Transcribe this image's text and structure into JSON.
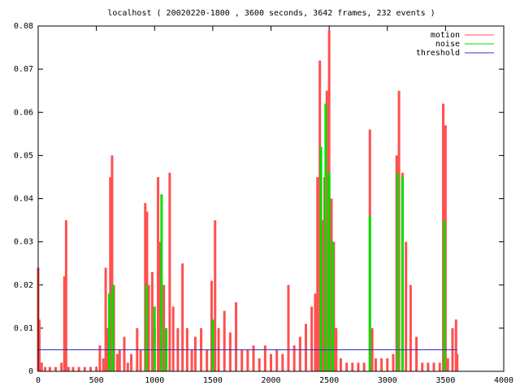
{
  "chart_data": {
    "type": "impulse",
    "title": "localhost ( 20020220-1800 , 3600 seconds, 3642 frames, 232 events )",
    "xlim": [
      0,
      4000
    ],
    "xticks": [
      0,
      500,
      1000,
      1500,
      2000,
      2500,
      3000,
      3500,
      4000
    ],
    "ylim": [
      0,
      0.08
    ],
    "yticks": [
      0,
      0.01,
      0.02,
      0.03,
      0.04,
      0.05,
      0.06,
      0.07,
      0.08
    ],
    "legend": "top-right",
    "series": [
      {
        "name": "motion",
        "color": "#ff5050",
        "style": "impulses",
        "x": [
          0,
          10,
          30,
          60,
          100,
          150,
          200,
          225,
          240,
          260,
          300,
          350,
          400,
          450,
          500,
          530,
          560,
          580,
          600,
          620,
          635,
          650,
          680,
          700,
          740,
          770,
          800,
          850,
          880,
          920,
          935,
          950,
          980,
          1000,
          1030,
          1050,
          1080,
          1100,
          1130,
          1160,
          1200,
          1240,
          1280,
          1320,
          1350,
          1400,
          1450,
          1490,
          1520,
          1550,
          1600,
          1650,
          1700,
          1750,
          1800,
          1850,
          1900,
          1950,
          2000,
          2050,
          2100,
          2150,
          2200,
          2250,
          2300,
          2350,
          2380,
          2400,
          2420,
          2440,
          2460,
          2480,
          2500,
          2520,
          2540,
          2560,
          2600,
          2650,
          2700,
          2750,
          2800,
          2850,
          2870,
          2900,
          2950,
          3000,
          3050,
          3080,
          3100,
          3130,
          3160,
          3200,
          3250,
          3300,
          3350,
          3400,
          3450,
          3480,
          3500,
          3520,
          3560,
          3590,
          3600
        ],
        "values": [
          0.024,
          0.012,
          0.002,
          0.001,
          0.001,
          0.001,
          0.002,
          0.022,
          0.035,
          0.001,
          0.001,
          0.001,
          0.001,
          0.001,
          0.001,
          0.006,
          0.003,
          0.024,
          0.01,
          0.045,
          0.05,
          0.02,
          0.004,
          0.005,
          0.008,
          0.002,
          0.004,
          0.01,
          0.005,
          0.039,
          0.037,
          0.02,
          0.023,
          0.01,
          0.045,
          0.03,
          0.02,
          0.01,
          0.046,
          0.015,
          0.01,
          0.025,
          0.01,
          0.005,
          0.008,
          0.01,
          0.005,
          0.021,
          0.035,
          0.01,
          0.014,
          0.009,
          0.016,
          0.005,
          0.005,
          0.006,
          0.003,
          0.006,
          0.004,
          0.005,
          0.004,
          0.02,
          0.006,
          0.008,
          0.011,
          0.015,
          0.018,
          0.045,
          0.072,
          0.035,
          0.045,
          0.065,
          0.079,
          0.04,
          0.03,
          0.01,
          0.003,
          0.002,
          0.002,
          0.002,
          0.002,
          0.056,
          0.01,
          0.003,
          0.003,
          0.003,
          0.004,
          0.05,
          0.065,
          0.046,
          0.03,
          0.02,
          0.008,
          0.002,
          0.002,
          0.002,
          0.002,
          0.062,
          0.057,
          0.003,
          0.01,
          0.012,
          0.004
        ]
      },
      {
        "name": "noise",
        "color": "#00e000",
        "style": "impulses",
        "x": [
          610,
          640,
          930,
          1000,
          1060,
          1100,
          1500,
          2430,
          2470,
          2500,
          2530,
          2850,
          3090,
          3130,
          3490
        ],
        "values": [
          0.018,
          0.02,
          0.02,
          0.015,
          0.041,
          0.01,
          0.012,
          0.052,
          0.062,
          0.046,
          0.03,
          0.036,
          0.046,
          0.045,
          0.035
        ]
      },
      {
        "name": "threshold",
        "color": "#3030c0",
        "style": "lines",
        "x": [
          0,
          3600
        ],
        "values": [
          0.005,
          0.005
        ]
      }
    ]
  }
}
